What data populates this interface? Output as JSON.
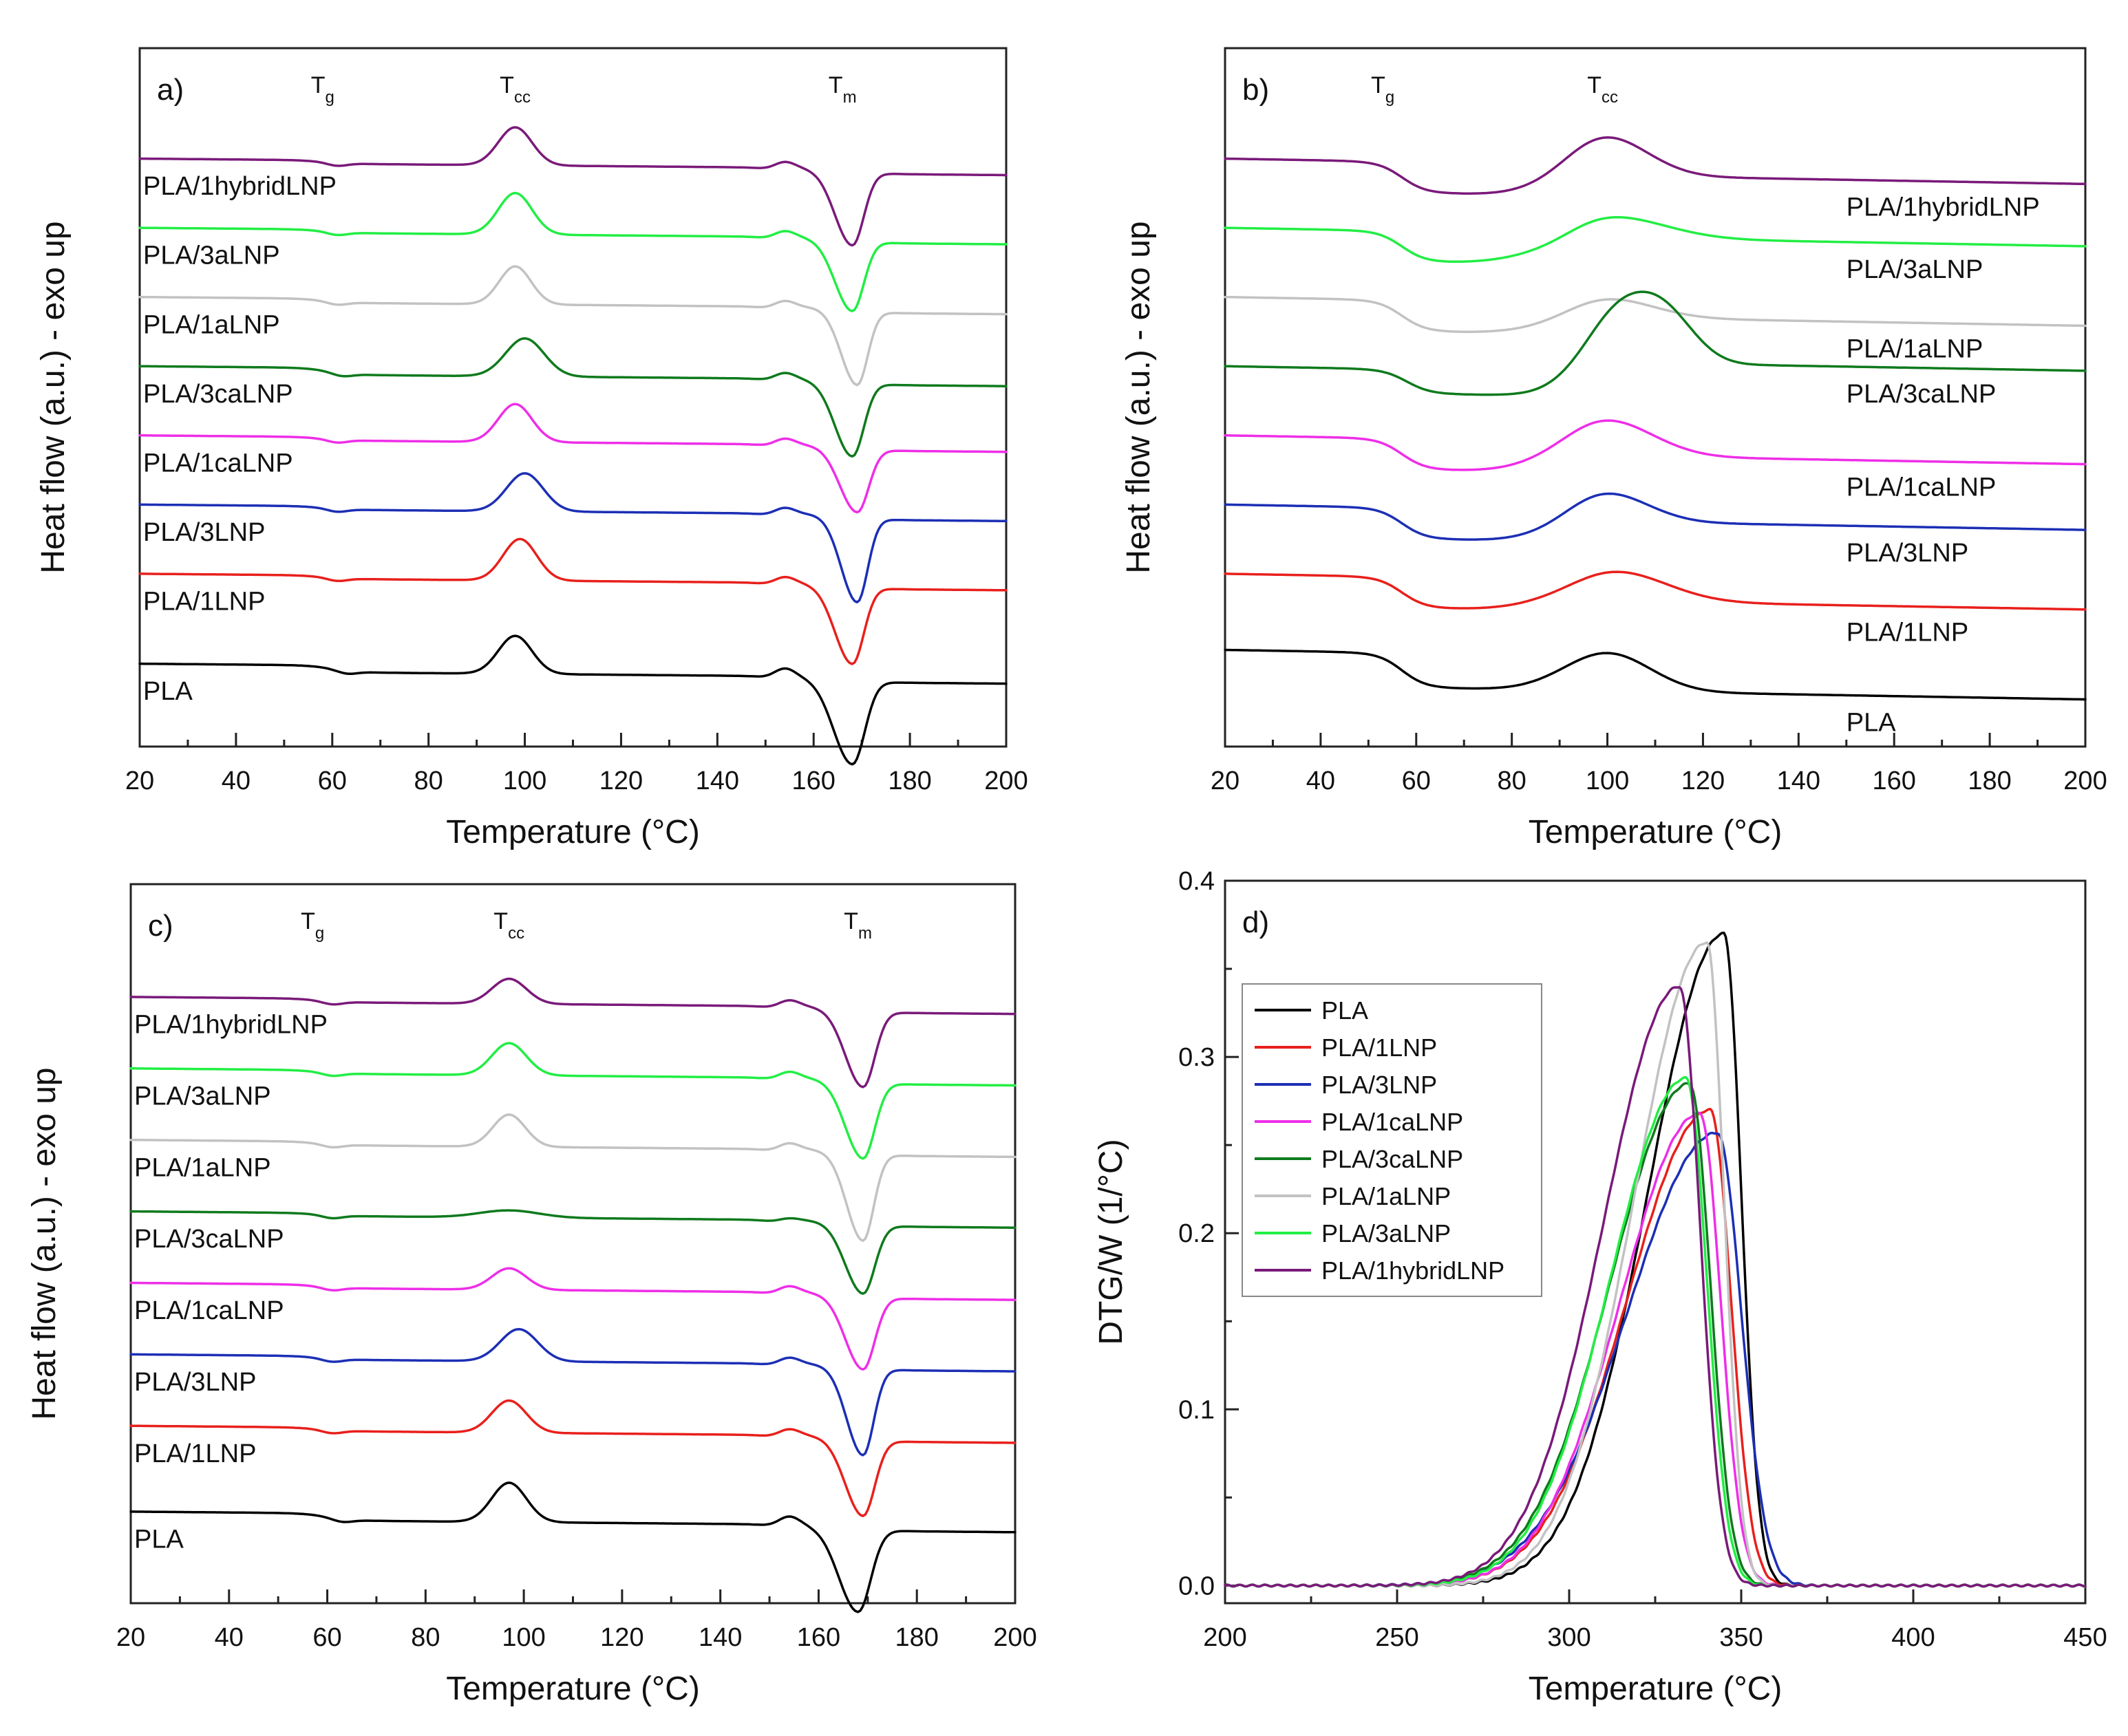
{
  "colors": {
    "PLA": "#000000",
    "PLA/1LNP": "#e8201c",
    "PLA/3LNP": "#1c2fb5",
    "PLA/1caLNP": "#ee2ee8",
    "PLA/3caLNP": "#0f7a1d",
    "PLA/1aLNP": "#c2c2c2",
    "PLA/3aLNP": "#22ee44",
    "PLA/1hybridLNP": "#7a1a7a"
  },
  "chart_data": [
    {
      "panel": "a)",
      "type": "line",
      "title": "",
      "xlabel": "Temperature (°C)",
      "ylabel": "Heat flow (a.u.) - exo up",
      "xlim": [
        20,
        200
      ],
      "xticks": [
        20,
        40,
        60,
        80,
        100,
        120,
        140,
        160,
        180,
        200
      ],
      "xtick_labels": [
        "20",
        "40",
        "60",
        "80",
        "100",
        "120",
        "140",
        "160",
        "180",
        "200"
      ],
      "y_arbitrary": true,
      "transitions": [
        {
          "main": "T",
          "sub": "g",
          "at": 58
        },
        {
          "main": "T",
          "sub": "cc",
          "at": 98
        },
        {
          "main": "T",
          "sub": "m",
          "at": 166
        }
      ],
      "series": [
        {
          "name": "PLA/1hybridLNP",
          "level": 8.0,
          "tg": 58,
          "tg_step": 0.05,
          "cc_at": 98,
          "cc_h": 0.55,
          "cc_w": 3.5,
          "m_at": 168,
          "m_depth": 1.1,
          "m_w": 2.4,
          "shoulder": 0.12
        },
        {
          "name": "PLA/3aLNP",
          "level": 7.0,
          "tg": 58,
          "tg_step": 0.05,
          "cc_at": 98,
          "cc_h": 0.6,
          "cc_w": 3.5,
          "m_at": 168,
          "m_depth": 1.05,
          "m_w": 2.4,
          "shoulder": 0.12
        },
        {
          "name": "PLA/1aLNP",
          "level": 6.0,
          "tg": 58,
          "tg_step": 0.06,
          "cc_at": 98,
          "cc_h": 0.55,
          "cc_w": 3.3,
          "m_at": 169,
          "m_depth": 1.1,
          "m_w": 2.2,
          "shoulder": 0.12
        },
        {
          "name": "PLA/3caLNP",
          "level": 5.0,
          "tg": 59,
          "tg_step": 0.1,
          "cc_at": 100,
          "cc_h": 0.55,
          "cc_w": 4.0,
          "m_at": 168,
          "m_depth": 1.1,
          "m_w": 2.4,
          "shoulder": 0.12
        },
        {
          "name": "PLA/1caLNP",
          "level": 4.0,
          "tg": 58,
          "tg_step": 0.05,
          "cc_at": 98,
          "cc_h": 0.55,
          "cc_w": 3.5,
          "m_at": 169,
          "m_depth": 0.95,
          "m_w": 2.4,
          "shoulder": 0.12
        },
        {
          "name": "PLA/3LNP",
          "level": 3.0,
          "tg": 58,
          "tg_step": 0.05,
          "cc_at": 100,
          "cc_h": 0.55,
          "cc_w": 3.8,
          "m_at": 169,
          "m_depth": 1.25,
          "m_w": 2.2,
          "shoulder": 0.12
        },
        {
          "name": "PLA/1LNP",
          "level": 2.0,
          "tg": 58,
          "tg_step": 0.05,
          "cc_at": 99,
          "cc_h": 0.6,
          "cc_w": 3.5,
          "m_at": 168,
          "m_depth": 1.15,
          "m_w": 2.4,
          "shoulder": 0.12
        },
        {
          "name": "PLA",
          "level": 0.7,
          "tg": 60,
          "tg_step": 0.1,
          "cc_at": 98,
          "cc_h": 0.55,
          "cc_w": 3.5,
          "m_at": 168,
          "m_depth": 1.25,
          "m_w": 2.6,
          "shoulder": 0.15
        }
      ]
    },
    {
      "panel": "b)",
      "type": "line",
      "title": "",
      "xlabel": "Temperature (°C)",
      "ylabel": "Heat flow (a.u.) - exo up",
      "xlim": [
        20,
        200
      ],
      "xticks": [
        20,
        40,
        60,
        80,
        100,
        120,
        140,
        160,
        180,
        200
      ],
      "xtick_labels": [
        "20",
        "40",
        "60",
        "80",
        "100",
        "120",
        "140",
        "160",
        "180",
        "200"
      ],
      "y_arbitrary": true,
      "transitions": [
        {
          "main": "T",
          "sub": "g",
          "at": 53
        },
        {
          "main": "T",
          "sub": "cc",
          "at": 99
        }
      ],
      "series": [
        {
          "name": "PLA/1hybridLNP",
          "level": 8.0,
          "tg": 57,
          "tg_step": 0.45,
          "cc_at": 99,
          "cc_h": 0.6,
          "cc_w": 9,
          "tail": 0.3
        },
        {
          "name": "PLA/3aLNP",
          "level": 7.0,
          "tg": 57,
          "tg_step": 0.45,
          "cc_at": 99,
          "cc_h": 0.35,
          "cc_w": 12,
          "tail": 0.4
        },
        {
          "name": "PLA/1aLNP",
          "level": 6.0,
          "tg": 57,
          "tg_step": 0.45,
          "cc_at": 99,
          "cc_h": 0.3,
          "cc_w": 10,
          "tail": 0.25
        },
        {
          "name": "PLA/3caLNP",
          "level": 5.0,
          "tg": 58,
          "tg_step": 0.35,
          "cc_at": 103,
          "cc_h": 0.9,
          "cc_w": 8,
          "second_at": 113,
          "second_h": 0.45,
          "tail": 0.5
        },
        {
          "name": "PLA/1caLNP",
          "level": 4.0,
          "tg": 57,
          "tg_step": 0.45,
          "cc_at": 99,
          "cc_h": 0.55,
          "cc_w": 10,
          "tail": 0.25
        },
        {
          "name": "PLA/3LNP",
          "level": 3.0,
          "tg": 57,
          "tg_step": 0.45,
          "cc_at": 99,
          "cc_h": 0.45,
          "cc_w": 9,
          "tail": 0.3
        },
        {
          "name": "PLA/1LNP",
          "level": 2.0,
          "tg": 57,
          "tg_step": 0.45,
          "cc_at": 101,
          "cc_h": 0.45,
          "cc_w": 11,
          "tail": 0.15
        },
        {
          "name": "PLA",
          "level": 0.9,
          "tg": 57,
          "tg_step": 0.5,
          "cc_at": 100,
          "cc_h": 0.55,
          "cc_w": 9,
          "tail": 0.0
        }
      ]
    },
    {
      "panel": "c)",
      "type": "line",
      "title": "",
      "xlabel": "Temperature (°C)",
      "ylabel": "Heat flow (a.u.) - exo up",
      "xlim": [
        20,
        200
      ],
      "xticks": [
        20,
        40,
        60,
        80,
        100,
        120,
        140,
        160,
        180,
        200
      ],
      "xtick_labels": [
        "20",
        "40",
        "60",
        "80",
        "100",
        "120",
        "140",
        "160",
        "180",
        "200"
      ],
      "y_arbitrary": true,
      "transitions": [
        {
          "main": "T",
          "sub": "g",
          "at": 57
        },
        {
          "main": "T",
          "sub": "cc",
          "at": 97
        },
        {
          "main": "T",
          "sub": "m",
          "at": 168
        }
      ],
      "series": [
        {
          "name": "PLA/1hybridLNP",
          "level": 8.0,
          "tg": 58,
          "tg_step": 0.05,
          "cc_at": 97,
          "cc_h": 0.35,
          "cc_w": 3.5,
          "m_at": 169,
          "m_depth": 1.1,
          "m_w": 2.4,
          "shoulder": 0.12
        },
        {
          "name": "PLA/3aLNP",
          "level": 7.0,
          "tg": 58,
          "tg_step": 0.05,
          "cc_at": 97,
          "cc_h": 0.45,
          "cc_w": 3.5,
          "m_at": 169,
          "m_depth": 1.1,
          "m_w": 2.4,
          "shoulder": 0.12
        },
        {
          "name": "PLA/1aLNP",
          "level": 6.0,
          "tg": 58,
          "tg_step": 0.05,
          "cc_at": 97,
          "cc_h": 0.45,
          "cc_w": 3.3,
          "m_at": 169,
          "m_depth": 1.25,
          "m_w": 2.2,
          "shoulder": 0.12
        },
        {
          "name": "PLA/3caLNP",
          "level": 5.0,
          "tg": 58,
          "tg_step": 0.04,
          "cc_at": 97,
          "cc_h": 0.1,
          "cc_w": 6,
          "m_at": 169,
          "m_depth": 1.0,
          "m_w": 2.4,
          "shoulder": 0.06
        },
        {
          "name": "PLA/1caLNP",
          "level": 4.0,
          "tg": 58,
          "tg_step": 0.05,
          "cc_at": 97,
          "cc_h": 0.3,
          "cc_w": 3.5,
          "m_at": 169,
          "m_depth": 1.05,
          "m_w": 2.4,
          "shoulder": 0.12
        },
        {
          "name": "PLA/3LNP",
          "level": 3.0,
          "tg": 58,
          "tg_step": 0.05,
          "cc_at": 99,
          "cc_h": 0.45,
          "cc_w": 3.8,
          "m_at": 169,
          "m_depth": 1.25,
          "m_w": 2.2,
          "shoulder": 0.12
        },
        {
          "name": "PLA/1LNP",
          "level": 2.0,
          "tg": 58,
          "tg_step": 0.05,
          "cc_at": 97,
          "cc_h": 0.45,
          "cc_w": 3.5,
          "m_at": 169,
          "m_depth": 1.1,
          "m_w": 2.4,
          "shoulder": 0.12
        },
        {
          "name": "PLA",
          "level": 0.8,
          "tg": 60,
          "tg_step": 0.1,
          "cc_at": 97,
          "cc_h": 0.55,
          "cc_w": 3.5,
          "m_at": 168,
          "m_depth": 1.2,
          "m_w": 2.6,
          "shoulder": 0.15
        }
      ]
    },
    {
      "panel": "d)",
      "type": "line",
      "title": "",
      "xlabel": "Temperature (°C)",
      "ylabel": "DTG/W (1/°C)",
      "xlim": [
        200,
        450
      ],
      "ylim": [
        -0.01,
        0.4
      ],
      "xticks": [
        200,
        250,
        300,
        350,
        400,
        450
      ],
      "xtick_labels": [
        "200",
        "250",
        "300",
        "350",
        "400",
        "450"
      ],
      "yticks": [
        0.0,
        0.1,
        0.2,
        0.3,
        0.4
      ],
      "ytick_labels": [
        "0.0",
        "0.1",
        "0.2",
        "0.3",
        "0.4"
      ],
      "legend_position": "upper-left",
      "series": [
        {
          "name": "PLA",
          "peak_x": 345,
          "peak_y": 0.37,
          "rise_w": 22,
          "fall_w": 5
        },
        {
          "name": "PLA/1LNP",
          "peak_x": 341,
          "peak_y": 0.27,
          "rise_w": 24,
          "fall_w": 6
        },
        {
          "name": "PLA/3LNP",
          "peak_x": 343,
          "peak_y": 0.257,
          "rise_w": 26,
          "fall_w": 7
        },
        {
          "name": "PLA/1caLNP",
          "peak_x": 338,
          "peak_y": 0.268,
          "rise_w": 23,
          "fall_w": 6
        },
        {
          "name": "PLA/3caLNP",
          "peak_x": 335,
          "peak_y": 0.285,
          "rise_w": 23,
          "fall_w": 6
        },
        {
          "name": "PLA/1aLNP",
          "peak_x": 340,
          "peak_y": 0.365,
          "rise_w": 21,
          "fall_w": 5
        },
        {
          "name": "PLA/3aLNP",
          "peak_x": 334,
          "peak_y": 0.288,
          "rise_w": 22,
          "fall_w": 6
        },
        {
          "name": "PLA/1hybridLNP",
          "peak_x": 332,
          "peak_y": 0.34,
          "rise_w": 22,
          "fall_w": 6
        }
      ]
    }
  ]
}
